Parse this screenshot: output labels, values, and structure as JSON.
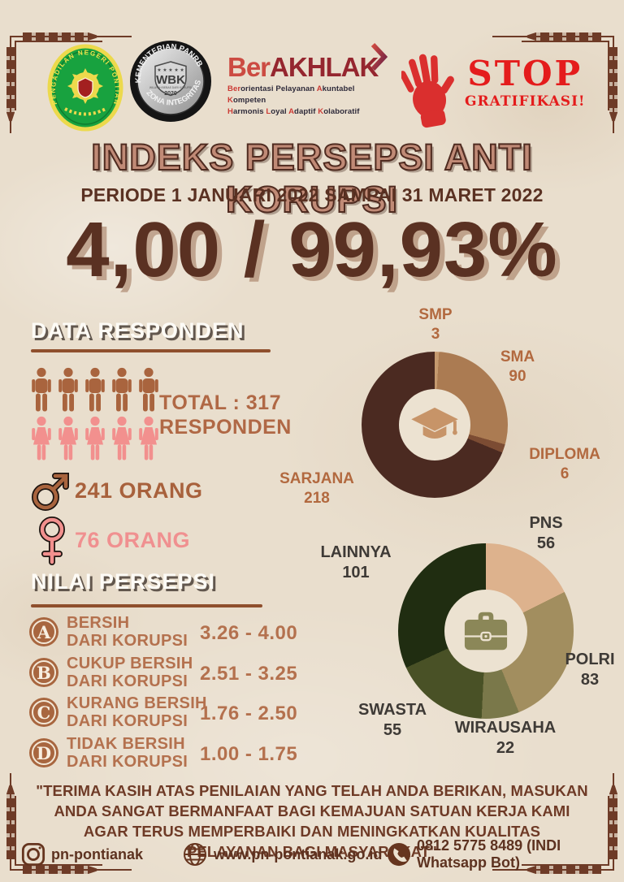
{
  "page": {
    "title": "INDEKS PERSEPSI ANTI KORUPSI",
    "subtitle": "PERIODE 1 JANUARI 2022 SAMPAI 31 MARET 2022",
    "score": "4,00 / 99,93%"
  },
  "logos": {
    "court_seal_text": "PENGADILAN NEGERI PONTIANAK",
    "wbk_medal": {
      "top_arc": "KEMENTERIAN PANRB",
      "stars": "★ ★ ★ ★ ★",
      "center": "WBK",
      "sub_center": "WILAYAH BEBAS DARI KORUPSI",
      "year": "2020",
      "bottom_arc": "ZONA INTEGRITAS"
    },
    "berakhlak": {
      "brand_prefix": "Ber",
      "brand_suffix": "AKHLAK",
      "tagline_line1": [
        {
          "t": "Ber",
          "red": true
        },
        {
          "t": "orientasi ",
          "red": false
        },
        {
          "t": "Pelayanan ",
          "red": false
        },
        {
          "t": "A",
          "red": true
        },
        {
          "t": "kuntabel ",
          "red": false
        },
        {
          "t": "K",
          "red": true
        },
        {
          "t": "ompeten",
          "red": false
        }
      ],
      "tagline_line2": [
        {
          "t": "H",
          "red": true
        },
        {
          "t": "armonis ",
          "red": false
        },
        {
          "t": "L",
          "red": true
        },
        {
          "t": "oyal ",
          "red": false
        },
        {
          "t": "A",
          "red": true
        },
        {
          "t": "daptif ",
          "red": false
        },
        {
          "t": "K",
          "red": true
        },
        {
          "t": "olaboratif",
          "red": false
        }
      ]
    },
    "stop": {
      "line1": "STOP",
      "line2": "GRATIFIKASI!"
    }
  },
  "responden": {
    "heading": "DATA RESPONDEN",
    "total_line1": "TOTAL : 317",
    "total_line2": "RESPONDEN",
    "male_icons": 5,
    "female_icons": 5,
    "male_count_label": "241 ORANG",
    "female_count_label": "76  ORANG"
  },
  "nilai": {
    "heading": "NILAI PERSEPSI",
    "items": [
      {
        "grade": "A",
        "label1": "BERSIH",
        "label2": "DARI KORUPSI",
        "range": "3.26 - 4.00"
      },
      {
        "grade": "B",
        "label1": "CUKUP BERSIH",
        "label2": "DARI KORUPSI",
        "range": "2.51 - 3.25"
      },
      {
        "grade": "C",
        "label1": "KURANG BERSIH",
        "label2": "DARI KORUPSI",
        "range": "1.76 - 2.50"
      },
      {
        "grade": "D",
        "label1": "TIDAK BERSIH",
        "label2": "DARI KORUPSI",
        "range": "1.00 - 1.75"
      }
    ]
  },
  "chart_data": [
    {
      "type": "pie",
      "subtype": "donut",
      "title": "",
      "center_icon": "graduation-cap",
      "categories": [
        "SMP",
        "SMA",
        "DIPLOMA",
        "SARJANA"
      ],
      "values": [
        3,
        90,
        6,
        218
      ],
      "total": 317,
      "label_color": "#b2693f",
      "hole_color": "#ece2d1",
      "segments": [
        {
          "label": "SMP",
          "value": 3,
          "color": "#c59a6f"
        },
        {
          "label": "SMA",
          "value": 90,
          "color": "#ab7b52"
        },
        {
          "label": "DIPLOMA",
          "value": 6,
          "color": "#7c4c33"
        },
        {
          "label": "SARJANA",
          "value": 218,
          "color": "#4b2a21"
        }
      ]
    },
    {
      "type": "pie",
      "subtype": "donut",
      "title": "",
      "center_icon": "briefcase",
      "categories": [
        "PNS",
        "POLRI",
        "WIRAUSAHA",
        "SWASTA",
        "LAINNYA"
      ],
      "values": [
        56,
        83,
        22,
        55,
        101
      ],
      "total": 317,
      "label_color": "#3e3a36",
      "hole_color": "#ece2d1",
      "segments": [
        {
          "label": "PNS",
          "value": 56,
          "color": "#ddb28d"
        },
        {
          "label": "POLRI",
          "value": 83,
          "color": "#a28e5f"
        },
        {
          "label": "WIRAUSAHA",
          "value": 22,
          "color": "#7a784a"
        },
        {
          "label": "SWASTA",
          "value": 55,
          "color": "#495126"
        },
        {
          "label": "LAINNYA",
          "value": 101,
          "color": "#202d11"
        }
      ]
    }
  ],
  "quote": "\"TERIMA KASIH ATAS PENILAIAN YANG TELAH ANDA BERIKAN, MASUKAN ANDA SANGAT BERMANFAAT BAGI KEMAJUAN SATUAN KERJA KAMI AGAR TERUS MEMPERBAIKI DAN MENINGKATKAN KUALITAS PELAYANAN BAGI MASYARAKAT\"",
  "footer": {
    "instagram": "pn-pontianak",
    "website": "www.pn-pontianak.go.id",
    "whatsapp": "0812 5775 8489 (INDI Whatsapp Bot)"
  },
  "colors": {
    "accent_sienna": "#b06845",
    "dark_brown": "#5a3122",
    "pink": "#f09090",
    "red": "#e41c1c",
    "frame": "#6e3b27"
  }
}
